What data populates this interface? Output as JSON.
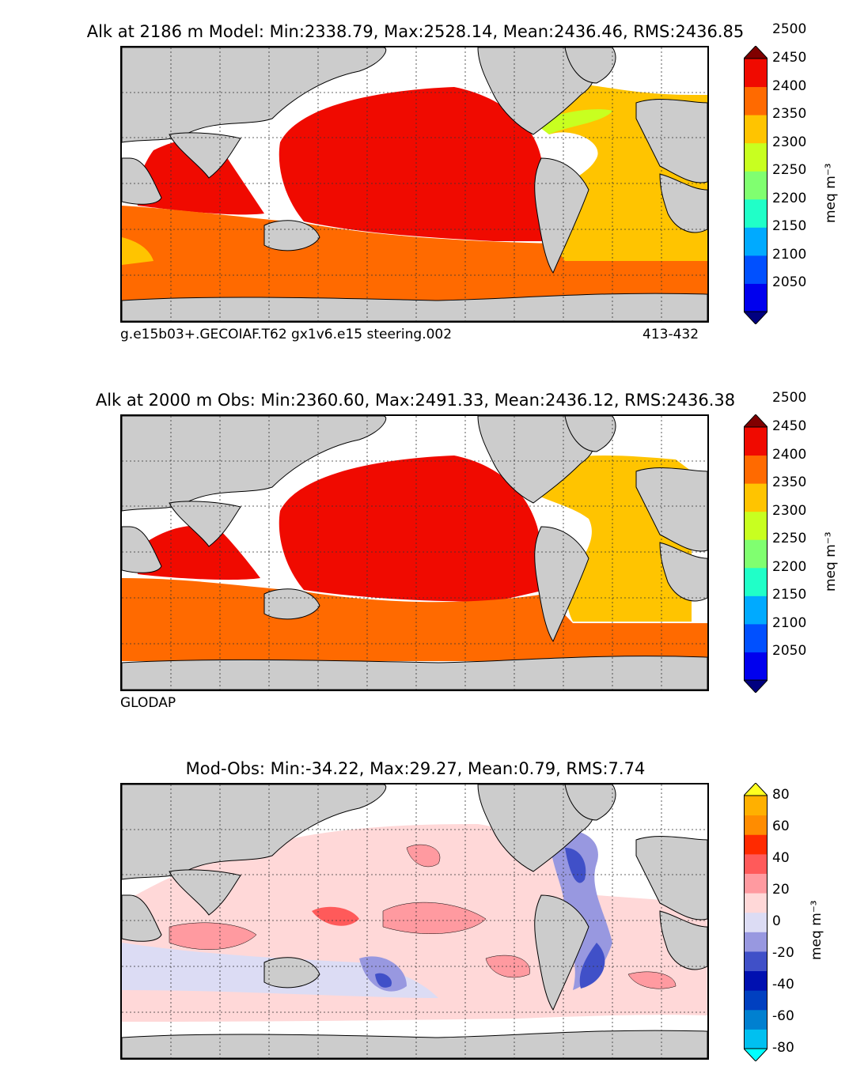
{
  "panels": [
    {
      "id": "model",
      "title": "Alk at 2186 m Model: Min:2338.79, Max:2528.14, Mean:2436.46, RMS:2436.85",
      "footer_left": "g.e15b03+.GECOIAF.T62 gx1v6.e15 steering.002",
      "footer_right": "413-432"
    },
    {
      "id": "obs",
      "title": "Alk at 2000 m Obs: Min:2360.60, Max:2491.33, Mean:2436.12, RMS:2436.38",
      "footer_left": "GLODAP",
      "footer_right": ""
    },
    {
      "id": "diff",
      "title": "Mod-Obs: Min:-34.22, Max:29.27, Mean:0.79, RMS:7.74",
      "footer_left": "",
      "footer_right": ""
    }
  ],
  "chart_data": [
    {
      "type": "heatmap",
      "title": "Alk at 2186 m Model: Min:2338.79, Max:2528.14, Mean:2436.46, RMS:2436.85",
      "field": "Alkalinity (model)",
      "depth_m": 2186,
      "stats": {
        "min": 2338.79,
        "max": 2528.14,
        "mean": 2436.46,
        "rms": 2436.85
      },
      "units": "meq m⁻³",
      "colorbar": {
        "ticks": [
          "2050",
          "2100",
          "2150",
          "2200",
          "2250",
          "2300",
          "2350",
          "2400",
          "2450",
          "2500"
        ],
        "colors": [
          "#000080",
          "#0000ee",
          "#0050ff",
          "#00aaff",
          "#20ffc8",
          "#80ff70",
          "#c8ff20",
          "#ffc400",
          "#ff6a00",
          "#f00a00",
          "#800000"
        ]
      }
    },
    {
      "type": "heatmap",
      "title": "Alk at 2000 m Obs: Min:2360.60, Max:2491.33, Mean:2436.12, RMS:2436.38",
      "field": "Alkalinity (GLODAP observations)",
      "depth_m": 2000,
      "stats": {
        "min": 2360.6,
        "max": 2491.33,
        "mean": 2436.12,
        "rms": 2436.38
      },
      "units": "meq m⁻³",
      "colorbar": {
        "ticks": [
          "2050",
          "2100",
          "2150",
          "2200",
          "2250",
          "2300",
          "2350",
          "2400",
          "2450",
          "2500"
        ],
        "colors": [
          "#000080",
          "#0000ee",
          "#0050ff",
          "#00aaff",
          "#20ffc8",
          "#80ff70",
          "#c8ff20",
          "#ffc400",
          "#ff6a00",
          "#f00a00",
          "#800000"
        ]
      }
    },
    {
      "type": "heatmap",
      "title": "Mod-Obs: Min:-34.22, Max:29.27, Mean:0.79, RMS:7.74",
      "field": "Model minus observations",
      "stats": {
        "min": -34.22,
        "max": 29.27,
        "mean": 0.79,
        "rms": 7.74
      },
      "units": "meq m⁻³",
      "colorbar": {
        "ticks": [
          "-80",
          "-60",
          "-40",
          "-20",
          "0",
          "20",
          "40",
          "60",
          "80"
        ],
        "colors": [
          "#00ffff",
          "#00c0f0",
          "#0080d0",
          "#0040c0",
          "#0010b0",
          "#4050c8",
          "#9898e0",
          "#dcdcf4",
          "#ffd8d8",
          "#ff9aa0",
          "#ff5a5a",
          "#ff2a00",
          "#ff8c00",
          "#ffb000",
          "#ffff20"
        ]
      }
    }
  ],
  "colors": {
    "land": "#cccccc",
    "missing": "#ffffff",
    "grid": "#333333"
  }
}
